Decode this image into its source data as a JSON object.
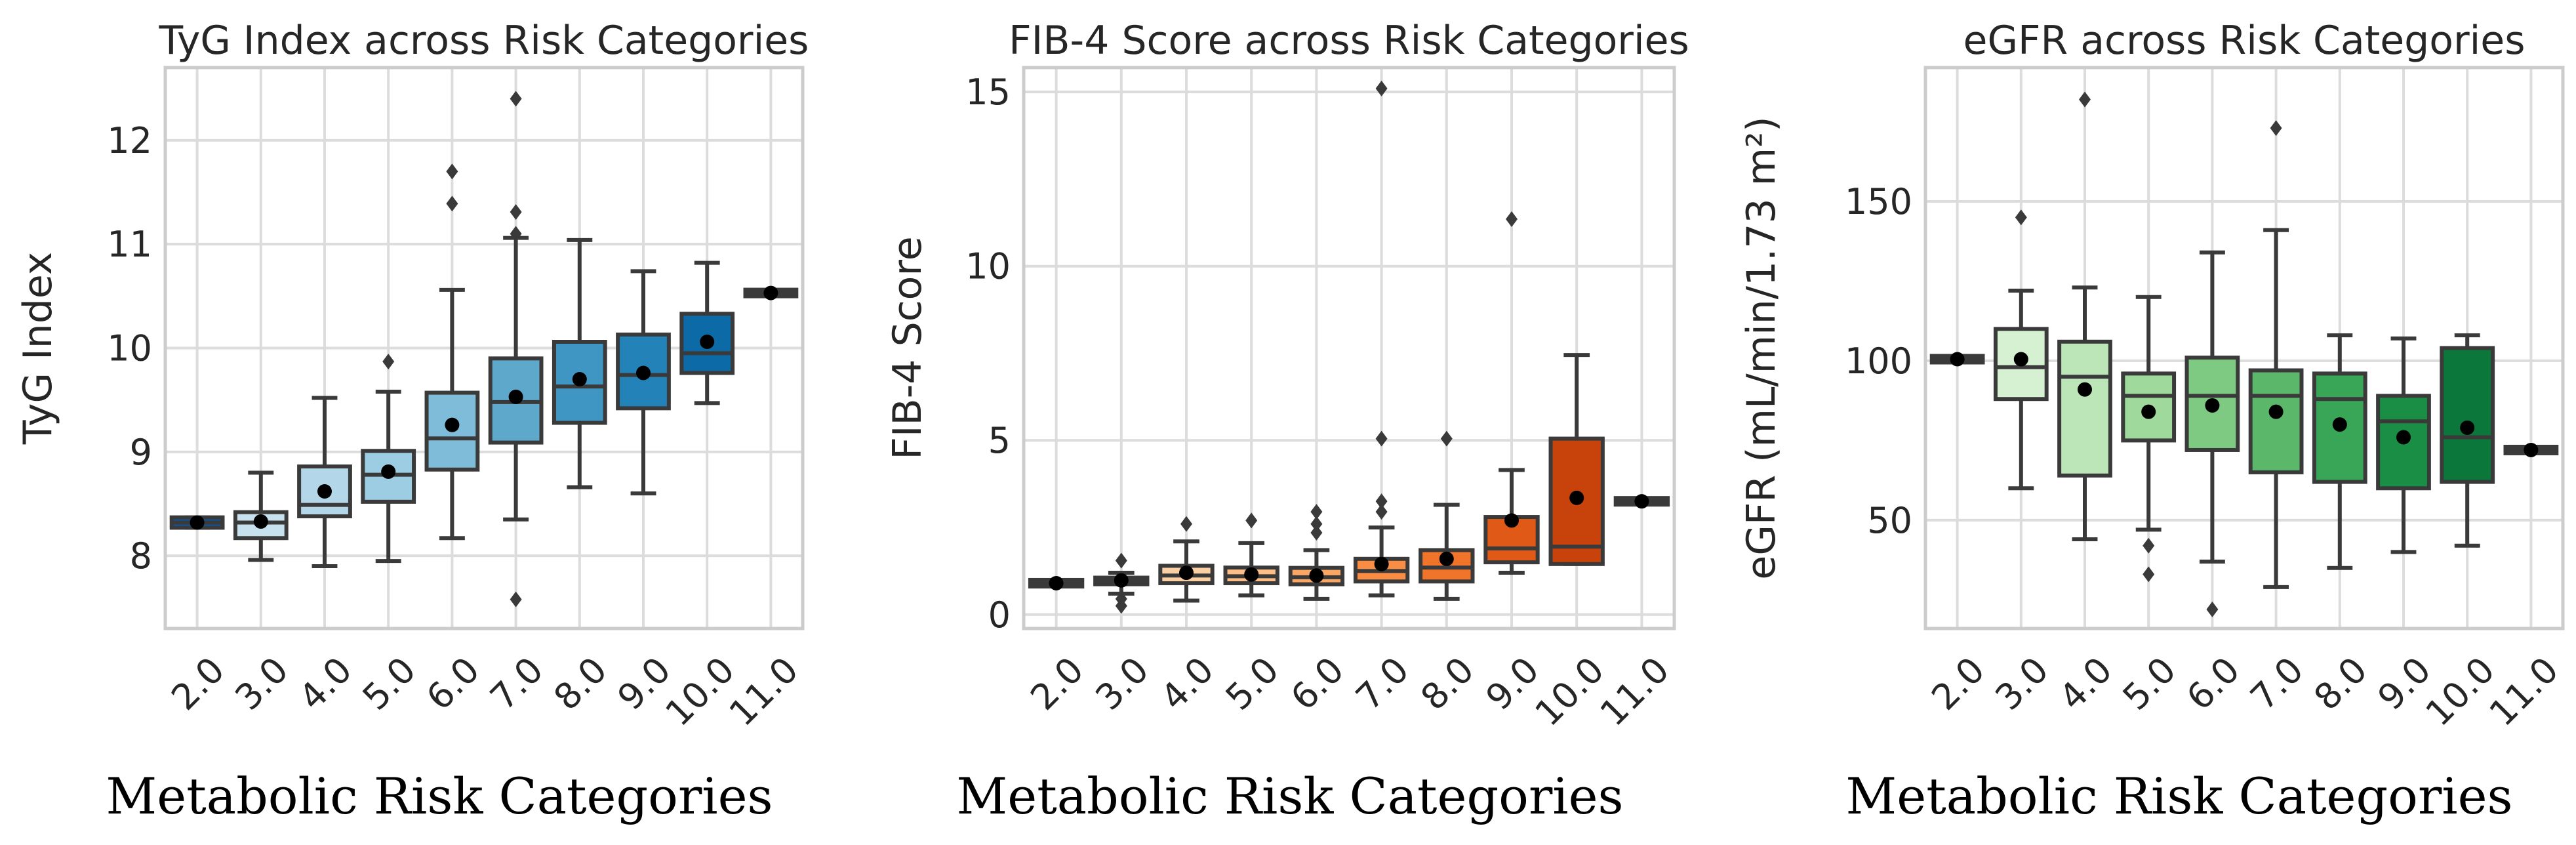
{
  "chart_data": [
    {
      "type": "box",
      "title": "TyG Index across Risk Categories",
      "xlabel": "Metabolic Risk Categories",
      "ylabel": "TyG Index",
      "ylim": [
        7.3,
        12.7
      ],
      "yticks": [
        8,
        9,
        10,
        11,
        12
      ],
      "yticklabels": [
        "8",
        "9",
        "10",
        "11",
        "12"
      ],
      "grid": true,
      "categories": [
        "2.0",
        "3.0",
        "4.0",
        "5.0",
        "6.0",
        "7.0",
        "8.0",
        "9.0",
        "10.0",
        "11.0"
      ],
      "colors": [
        "#0b57a0",
        "#c8e1ee",
        "#b3d7e9",
        "#9ccde3",
        "#7ebcd9",
        "#5da8cb",
        "#3f96c2",
        "#2382b8",
        "#0c6aa6",
        "#084e8a"
      ],
      "boxes": [
        {
          "q1": 8.27,
          "med": 8.32,
          "q3": 8.37,
          "lw": 8.27,
          "uw": 8.37,
          "mean": 8.32,
          "outliers": []
        },
        {
          "q1": 8.17,
          "med": 8.32,
          "q3": 8.42,
          "lw": 7.96,
          "uw": 8.8,
          "mean": 8.33,
          "outliers": []
        },
        {
          "q1": 8.38,
          "med": 8.49,
          "q3": 8.86,
          "lw": 7.9,
          "uw": 9.52,
          "mean": 8.62,
          "outliers": []
        },
        {
          "q1": 8.52,
          "med": 8.78,
          "q3": 9.01,
          "lw": 7.95,
          "uw": 9.58,
          "mean": 8.81,
          "outliers": [
            9.87
          ]
        },
        {
          "q1": 8.83,
          "med": 9.13,
          "q3": 9.57,
          "lw": 8.17,
          "uw": 10.56,
          "mean": 9.26,
          "outliers": [
            11.39,
            11.7
          ]
        },
        {
          "q1": 9.09,
          "med": 9.48,
          "q3": 9.9,
          "lw": 8.35,
          "uw": 11.06,
          "mean": 9.53,
          "outliers": [
            7.58,
            11.1,
            11.31,
            12.4
          ]
        },
        {
          "q1": 9.28,
          "med": 9.63,
          "q3": 10.06,
          "lw": 8.66,
          "uw": 11.04,
          "mean": 9.7,
          "outliers": []
        },
        {
          "q1": 9.42,
          "med": 9.74,
          "q3": 10.13,
          "lw": 8.6,
          "uw": 10.74,
          "mean": 9.76,
          "outliers": []
        },
        {
          "q1": 9.76,
          "med": 9.95,
          "q3": 10.33,
          "lw": 9.47,
          "uw": 10.82,
          "mean": 10.06,
          "outliers": []
        },
        {
          "q1": 10.53,
          "med": 10.53,
          "q3": 10.53,
          "lw": 10.53,
          "uw": 10.53,
          "mean": 10.53,
          "outliers": []
        }
      ]
    },
    {
      "type": "box",
      "title": "FIB-4 Score across Risk Categories",
      "xlabel": "Metabolic Risk Categories",
      "ylabel": "FIB-4 Score",
      "ylim": [
        -0.4,
        15.7
      ],
      "yticks": [
        0,
        5,
        10,
        15
      ],
      "yticklabels": [
        "0",
        "5",
        "10",
        "15"
      ],
      "grid": true,
      "categories": [
        "2.0",
        "3.0",
        "4.0",
        "5.0",
        "6.0",
        "7.0",
        "8.0",
        "9.0",
        "10.0",
        "11.0"
      ],
      "colors": [
        "#7a2a08",
        "#fde4cd",
        "#fcd0a5",
        "#fcbd87",
        "#fca664",
        "#f98d44",
        "#f0742a",
        "#e15916",
        "#c8420b",
        "#a33205"
      ],
      "boxes": [
        {
          "q1": 0.82,
          "med": 0.9,
          "q3": 0.98,
          "lw": 0.82,
          "uw": 0.98,
          "mean": 0.9,
          "outliers": []
        },
        {
          "q1": 0.88,
          "med": 0.98,
          "q3": 1.05,
          "lw": 0.6,
          "uw": 1.2,
          "mean": 0.98,
          "outliers": [
            0.25,
            0.45,
            1.55
          ]
        },
        {
          "q1": 0.9,
          "med": 1.12,
          "q3": 1.4,
          "lw": 0.4,
          "uw": 2.1,
          "mean": 1.2,
          "outliers": [
            2.6
          ]
        },
        {
          "q1": 0.9,
          "med": 1.1,
          "q3": 1.35,
          "lw": 0.55,
          "uw": 2.05,
          "mean": 1.15,
          "outliers": [
            2.7
          ]
        },
        {
          "q1": 0.87,
          "med": 1.07,
          "q3": 1.34,
          "lw": 0.45,
          "uw": 1.85,
          "mean": 1.12,
          "outliers": [
            2.35,
            2.6,
            2.95
          ]
        },
        {
          "q1": 0.95,
          "med": 1.25,
          "q3": 1.6,
          "lw": 0.55,
          "uw": 2.5,
          "mean": 1.45,
          "outliers": [
            2.95,
            3.25,
            5.05,
            15.1
          ]
        },
        {
          "q1": 0.95,
          "med": 1.35,
          "q3": 1.85,
          "lw": 0.45,
          "uw": 3.15,
          "mean": 1.6,
          "outliers": [
            5.05
          ]
        },
        {
          "q1": 1.5,
          "med": 1.9,
          "q3": 2.8,
          "lw": 1.2,
          "uw": 4.15,
          "mean": 2.7,
          "outliers": [
            11.35
          ]
        },
        {
          "q1": 1.45,
          "med": 1.95,
          "q3": 5.05,
          "lw": 1.45,
          "uw": 7.45,
          "mean": 3.35,
          "outliers": []
        },
        {
          "q1": 3.25,
          "med": 3.25,
          "q3": 3.25,
          "lw": 3.25,
          "uw": 3.25,
          "mean": 3.25,
          "outliers": []
        }
      ]
    },
    {
      "type": "box",
      "title": "eGFR across Risk Categories",
      "xlabel": "Metabolic Risk Categories",
      "ylabel": "eGFR (mL/min/1.73 m²)",
      "ylim": [
        16,
        192
      ],
      "yticks": [
        50,
        100,
        150
      ],
      "yticklabels": [
        "50",
        "100",
        "150"
      ],
      "grid": true,
      "categories": [
        "2.0",
        "3.0",
        "4.0",
        "5.0",
        "6.0",
        "7.0",
        "8.0",
        "9.0",
        "10.0",
        "11.0"
      ],
      "colors": [
        "#0a6d33",
        "#d6f0d2",
        "#bce6b8",
        "#9fd99c",
        "#7fca82",
        "#5bb86b",
        "#38a557",
        "#1b8e46",
        "#0c773a",
        "#045e2d"
      ],
      "boxes": [
        {
          "q1": 99.5,
          "med": 100.5,
          "q3": 101.5,
          "lw": 99.5,
          "uw": 101.5,
          "mean": 100.5,
          "outliers": []
        },
        {
          "q1": 88,
          "med": 98,
          "q3": 110,
          "lw": 60,
          "uw": 122,
          "mean": 100.5,
          "outliers": [
            145
          ]
        },
        {
          "q1": 64,
          "med": 95,
          "q3": 106,
          "lw": 44,
          "uw": 123,
          "mean": 91,
          "outliers": [
            182
          ]
        },
        {
          "q1": 75,
          "med": 89,
          "q3": 96,
          "lw": 47,
          "uw": 120,
          "mean": 84,
          "outliers": [
            33,
            42
          ]
        },
        {
          "q1": 72,
          "med": 89,
          "q3": 101,
          "lw": 37,
          "uw": 134,
          "mean": 86,
          "outliers": [
            22
          ]
        },
        {
          "q1": 65,
          "med": 89,
          "q3": 97,
          "lw": 29,
          "uw": 141,
          "mean": 84,
          "outliers": [
            173
          ]
        },
        {
          "q1": 62,
          "med": 88,
          "q3": 96,
          "lw": 35,
          "uw": 108,
          "mean": 80,
          "outliers": []
        },
        {
          "q1": 60,
          "med": 81,
          "q3": 89,
          "lw": 40,
          "uw": 107,
          "mean": 76,
          "outliers": []
        },
        {
          "q1": 62,
          "med": 76,
          "q3": 104,
          "lw": 42,
          "uw": 108,
          "mean": 79,
          "outliers": []
        },
        {
          "q1": 72,
          "med": 72,
          "q3": 72,
          "lw": 72,
          "uw": 72,
          "mean": 72,
          "outliers": []
        }
      ]
    }
  ]
}
